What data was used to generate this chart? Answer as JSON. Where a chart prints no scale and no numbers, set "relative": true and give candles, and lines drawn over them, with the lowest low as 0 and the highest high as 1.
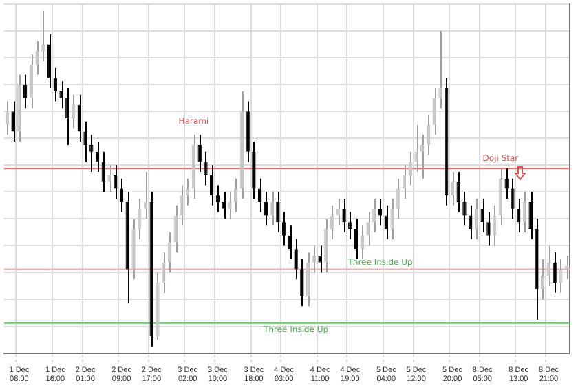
{
  "chart_data": {
    "type": "candlestick",
    "relative": true,
    "grid": true,
    "legend": false,
    "categories": [
      null,
      null,
      "1 Dec 08:00",
      null,
      null,
      null,
      null,
      null,
      "1 Dec 16:00",
      null,
      null,
      null,
      null,
      "2 Dec 01:00",
      null,
      null,
      null,
      null,
      null,
      "2 Dec 09:00",
      null,
      null,
      null,
      null,
      "2 Dec 17:00",
      null,
      null,
      null,
      null,
      null,
      "3 Dec 02:00",
      null,
      null,
      null,
      null,
      "3 Dec 10:00",
      null,
      null,
      null,
      null,
      null,
      "3 Dec 18:00",
      null,
      null,
      null,
      null,
      "4 Dec 03:00",
      null,
      null,
      null,
      null,
      null,
      "4 Dec 11:00",
      null,
      null,
      null,
      null,
      "4 Dec 19:00",
      null,
      null,
      null,
      null,
      null,
      "5 Dec 04:00",
      null,
      null,
      null,
      null,
      "5 Dec 12:00",
      null,
      null,
      null,
      null,
      null,
      "5 Dec 20:00",
      null,
      null,
      null,
      null,
      "8 Dec 05:00",
      null,
      null,
      null,
      null,
      null,
      "8 Dec 13:00",
      null,
      null,
      null,
      null,
      "8 Dec 21:00",
      null,
      null,
      null
    ],
    "ohlc": [
      [
        0.66,
        0.73,
        0.63,
        0.7
      ],
      [
        0.7,
        0.73,
        0.61,
        0.64
      ],
      [
        0.64,
        0.81,
        0.61,
        0.78
      ],
      [
        0.78,
        0.81,
        0.71,
        0.74
      ],
      [
        0.74,
        0.87,
        0.71,
        0.84
      ],
      [
        0.84,
        0.91,
        0.81,
        0.88
      ],
      [
        0.88,
        1.0,
        0.85,
        0.9
      ],
      [
        0.9,
        0.93,
        0.77,
        0.8
      ],
      [
        0.8,
        0.83,
        0.73,
        0.76
      ],
      [
        0.76,
        0.79,
        0.71,
        0.74
      ],
      [
        0.74,
        0.77,
        0.6,
        0.68
      ],
      [
        0.68,
        0.75,
        0.65,
        0.72
      ],
      [
        0.72,
        0.75,
        0.61,
        0.64
      ],
      [
        0.64,
        0.67,
        0.55,
        0.6
      ],
      [
        0.6,
        0.63,
        0.52,
        0.58
      ],
      [
        0.58,
        0.61,
        0.52,
        0.55
      ],
      [
        0.55,
        0.58,
        0.46,
        0.49
      ],
      [
        0.49,
        0.54,
        0.46,
        0.51
      ],
      [
        0.51,
        0.54,
        0.44,
        0.47
      ],
      [
        0.47,
        0.5,
        0.4,
        0.43
      ],
      [
        0.43,
        0.46,
        0.13,
        0.23
      ],
      [
        0.23,
        0.38,
        0.2,
        0.35
      ],
      [
        0.35,
        0.44,
        0.32,
        0.41
      ],
      [
        0.41,
        0.52,
        0.38,
        0.43
      ],
      [
        0.43,
        0.46,
        0.0,
        0.03
      ],
      [
        0.03,
        0.22,
        0.02,
        0.19
      ],
      [
        0.19,
        0.28,
        0.16,
        0.25
      ],
      [
        0.25,
        0.34,
        0.22,
        0.31
      ],
      [
        0.31,
        0.42,
        0.28,
        0.39
      ],
      [
        0.39,
        0.48,
        0.36,
        0.45
      ],
      [
        0.45,
        0.5,
        0.42,
        0.47
      ],
      [
        0.47,
        0.63,
        0.44,
        0.6
      ],
      [
        0.6,
        0.63,
        0.52,
        0.55
      ],
      [
        0.55,
        0.58,
        0.48,
        0.51
      ],
      [
        0.51,
        0.54,
        0.42,
        0.45
      ],
      [
        0.45,
        0.48,
        0.4,
        0.43
      ],
      [
        0.43,
        0.46,
        0.38,
        0.41
      ],
      [
        0.41,
        0.46,
        0.38,
        0.43
      ],
      [
        0.43,
        0.5,
        0.4,
        0.47
      ],
      [
        0.47,
        0.76,
        0.44,
        0.7
      ],
      [
        0.7,
        0.73,
        0.55,
        0.58
      ],
      [
        0.58,
        0.61,
        0.44,
        0.47
      ],
      [
        0.47,
        0.5,
        0.4,
        0.43
      ],
      [
        0.43,
        0.46,
        0.36,
        0.39
      ],
      [
        0.39,
        0.46,
        0.36,
        0.43
      ],
      [
        0.43,
        0.46,
        0.34,
        0.37
      ],
      [
        0.37,
        0.4,
        0.3,
        0.33
      ],
      [
        0.33,
        0.36,
        0.26,
        0.29
      ],
      [
        0.29,
        0.32,
        0.2,
        0.23
      ],
      [
        0.23,
        0.26,
        0.12,
        0.15
      ],
      [
        0.15,
        0.28,
        0.12,
        0.25
      ],
      [
        0.25,
        0.3,
        0.22,
        0.27
      ],
      [
        0.27,
        0.3,
        0.22,
        0.25
      ],
      [
        0.25,
        0.38,
        0.22,
        0.35
      ],
      [
        0.35,
        0.42,
        0.32,
        0.39
      ],
      [
        0.39,
        0.44,
        0.36,
        0.41
      ],
      [
        0.41,
        0.44,
        0.34,
        0.37
      ],
      [
        0.37,
        0.4,
        0.32,
        0.35
      ],
      [
        0.35,
        0.38,
        0.26,
        0.29
      ],
      [
        0.29,
        0.36,
        0.26,
        0.33
      ],
      [
        0.33,
        0.4,
        0.3,
        0.37
      ],
      [
        0.37,
        0.44,
        0.34,
        0.41
      ],
      [
        0.41,
        0.44,
        0.36,
        0.39
      ],
      [
        0.39,
        0.42,
        0.32,
        0.35
      ],
      [
        0.35,
        0.44,
        0.32,
        0.41
      ],
      [
        0.41,
        0.5,
        0.38,
        0.47
      ],
      [
        0.47,
        0.54,
        0.44,
        0.51
      ],
      [
        0.51,
        0.58,
        0.48,
        0.55
      ],
      [
        0.55,
        0.66,
        0.52,
        0.58
      ],
      [
        0.58,
        0.63,
        0.5,
        0.6
      ],
      [
        0.6,
        0.69,
        0.57,
        0.66
      ],
      [
        0.66,
        0.77,
        0.63,
        0.74
      ],
      [
        0.74,
        0.94,
        0.71,
        0.77
      ],
      [
        0.77,
        0.8,
        0.42,
        0.45
      ],
      [
        0.45,
        0.52,
        0.42,
        0.49
      ],
      [
        0.49,
        0.52,
        0.4,
        0.43
      ],
      [
        0.43,
        0.46,
        0.36,
        0.39
      ],
      [
        0.39,
        0.42,
        0.32,
        0.35
      ],
      [
        0.35,
        0.44,
        0.32,
        0.41
      ],
      [
        0.41,
        0.44,
        0.34,
        0.37
      ],
      [
        0.37,
        0.4,
        0.3,
        0.33
      ],
      [
        0.33,
        0.42,
        0.3,
        0.39
      ],
      [
        0.39,
        0.53,
        0.36,
        0.5
      ],
      [
        0.5,
        0.53,
        0.44,
        0.47
      ],
      [
        0.47,
        0.5,
        0.38,
        0.41
      ],
      [
        0.41,
        0.44,
        0.34,
        0.37
      ],
      [
        0.37,
        0.46,
        0.34,
        0.43
      ],
      [
        0.43,
        0.46,
        0.32,
        0.35
      ],
      [
        0.35,
        0.38,
        0.08,
        0.17
      ],
      [
        0.17,
        0.26,
        0.14,
        0.21
      ],
      [
        0.21,
        0.3,
        0.18,
        0.25
      ],
      [
        0.25,
        0.28,
        0.16,
        0.19
      ],
      [
        0.19,
        0.26,
        0.16,
        0.23
      ],
      [
        0.23,
        0.27,
        0.2,
        0.24
      ]
    ],
    "colors": [
      "#c8c8c8",
      "#000000",
      "#c8c8c8",
      "#000000",
      "#c8c8c8",
      "#c8c8c8",
      "#c8c8c8",
      "#000000",
      "#000000",
      "#000000",
      "#000000",
      "#c8c8c8",
      "#000000",
      "#000000",
      "#000000",
      "#000000",
      "#000000",
      "#c8c8c8",
      "#000000",
      "#000000",
      "#000000",
      "#c8c8c8",
      "#c8c8c8",
      "#c8c8c8",
      "#000000",
      "#c8c8c8",
      "#c8c8c8",
      "#c8c8c8",
      "#c8c8c8",
      "#c8c8c8",
      "#c8c8c8",
      "#c8c8c8",
      "#000000",
      "#000000",
      "#000000",
      "#000000",
      "#000000",
      "#c8c8c8",
      "#c8c8c8",
      "#c8c8c8",
      "#000000",
      "#000000",
      "#000000",
      "#000000",
      "#c8c8c8",
      "#000000",
      "#000000",
      "#000000",
      "#000000",
      "#000000",
      "#c8c8c8",
      "#c8c8c8",
      "#000000",
      "#c8c8c8",
      "#c8c8c8",
      "#c8c8c8",
      "#000000",
      "#000000",
      "#000000",
      "#c8c8c8",
      "#c8c8c8",
      "#c8c8c8",
      "#000000",
      "#000000",
      "#c8c8c8",
      "#c8c8c8",
      "#c8c8c8",
      "#c8c8c8",
      "#c8c8c8",
      "#c8c8c8",
      "#c8c8c8",
      "#c8c8c8",
      "#c8c8c8",
      "#000000",
      "#c8c8c8",
      "#000000",
      "#000000",
      "#000000",
      "#c8c8c8",
      "#000000",
      "#000000",
      "#c8c8c8",
      "#c8c8c8",
      "#000000",
      "#000000",
      "#000000",
      "#c8c8c8",
      "#000000",
      "#000000",
      "#c8c8c8",
      "#c8c8c8",
      "#000000",
      "#c8c8c8",
      "#c8c8c8"
    ],
    "ref_lines": [
      {
        "axis": "y",
        "value": 0.23,
        "color": "#f2b0b0"
      },
      {
        "axis": "y",
        "value": 0.53,
        "color": "#f07070"
      },
      {
        "axis": "y",
        "value": 0.07,
        "color": "#66cc66"
      }
    ],
    "annotations": [
      "Harami",
      "Three Inside Up",
      "Three Inside Up",
      "Doji Star"
    ]
  }
}
